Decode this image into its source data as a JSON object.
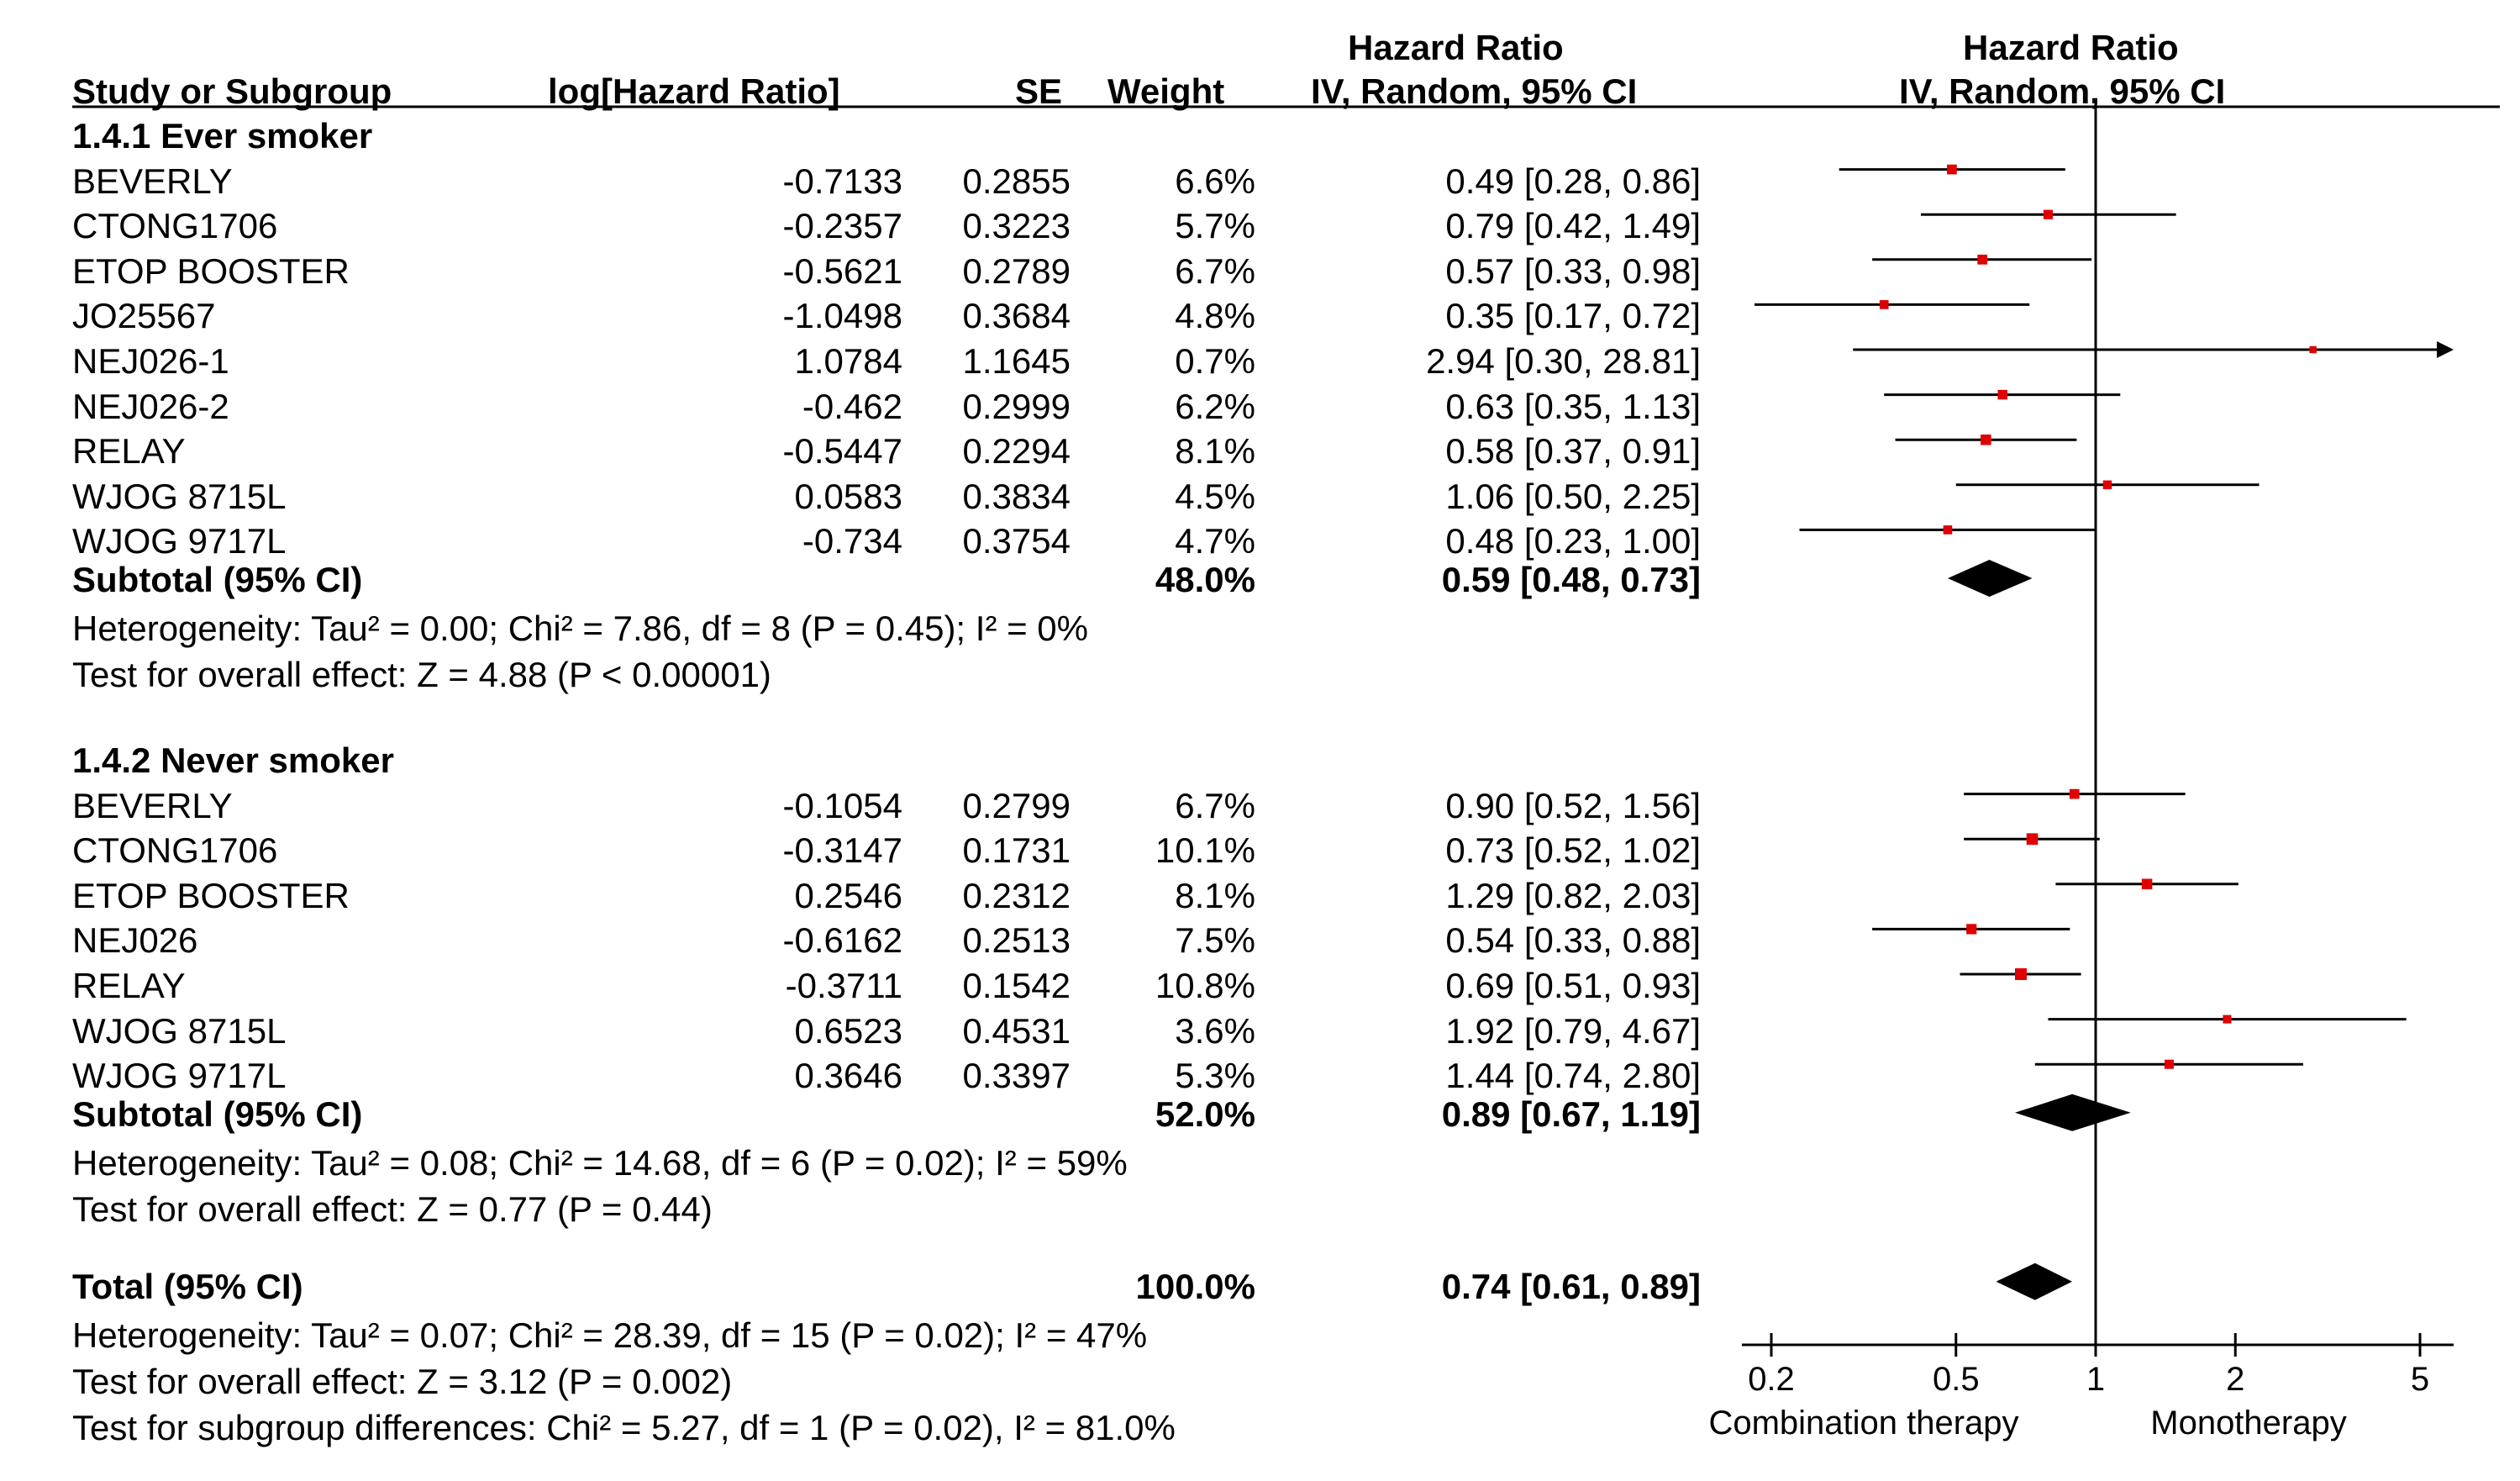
{
  "header": {
    "col_study": "Study or Subgroup",
    "col_loghr": "log[Hazard Ratio]",
    "col_se": "SE",
    "col_weight": "Weight",
    "col_hr_top": "Hazard Ratio",
    "col_hr_bottom": "IV, Random, 95% CI",
    "plot_top": "Hazard Ratio",
    "plot_bottom": "IV, Random, 95% CI"
  },
  "chart_data": {
    "type": "forest",
    "x_scale": "log",
    "xlim": [
      0.2,
      5
    ],
    "x_ticks": [
      "0.2",
      "0.5",
      "1",
      "2",
      "5"
    ],
    "reference_line": 1,
    "favours_left": "Combination therapy",
    "favours_right": "Monotherapy",
    "subgroups": [
      {
        "title": "1.4.1 Ever smoker",
        "studies": [
          {
            "name": "BEVERLY",
            "loghr": "-0.7133",
            "se": "0.2855",
            "weight": "6.6%",
            "ci": "0.49 [0.28, 0.86]",
            "hr": 0.49,
            "lo": 0.28,
            "hi": 0.86
          },
          {
            "name": "CTONG1706",
            "loghr": "-0.2357",
            "se": "0.3223",
            "weight": "5.7%",
            "ci": "0.79 [0.42, 1.49]",
            "hr": 0.79,
            "lo": 0.42,
            "hi": 1.49
          },
          {
            "name": "ETOP BOOSTER",
            "loghr": "-0.5621",
            "se": "0.2789",
            "weight": "6.7%",
            "ci": "0.57 [0.33, 0.98]",
            "hr": 0.57,
            "lo": 0.33,
            "hi": 0.98
          },
          {
            "name": "JO25567",
            "loghr": "-1.0498",
            "se": "0.3684",
            "weight": "4.8%",
            "ci": "0.35 [0.17, 0.72]",
            "hr": 0.35,
            "lo": 0.17,
            "hi": 0.72
          },
          {
            "name": "NEJ026-1",
            "loghr": "1.0784",
            "se": "1.1645",
            "weight": "0.7%",
            "ci": "2.94 [0.30, 28.81]",
            "hr": 2.94,
            "lo": 0.3,
            "hi": 28.81
          },
          {
            "name": "NEJ026-2",
            "loghr": "-0.462",
            "se": "0.2999",
            "weight": "6.2%",
            "ci": "0.63 [0.35, 1.13]",
            "hr": 0.63,
            "lo": 0.35,
            "hi": 1.13
          },
          {
            "name": "RELAY",
            "loghr": "-0.5447",
            "se": "0.2294",
            "weight": "8.1%",
            "ci": "0.58 [0.37, 0.91]",
            "hr": 0.58,
            "lo": 0.37,
            "hi": 0.91
          },
          {
            "name": "WJOG 8715L",
            "loghr": "0.0583",
            "se": "0.3834",
            "weight": "4.5%",
            "ci": "1.06 [0.50, 2.25]",
            "hr": 1.06,
            "lo": 0.5,
            "hi": 2.25
          },
          {
            "name": "WJOG 9717L",
            "loghr": "-0.734",
            "se": "0.3754",
            "weight": "4.7%",
            "ci": "0.48 [0.23, 1.00]",
            "hr": 0.48,
            "lo": 0.23,
            "hi": 1.0
          }
        ],
        "subtotal": {
          "label": "Subtotal (95% CI)",
          "weight": "48.0%",
          "ci": "0.59 [0.48, 0.73]",
          "hr": 0.59,
          "lo": 0.48,
          "hi": 0.73
        },
        "heterogeneity": "Heterogeneity: Tau² = 0.00; Chi² = 7.86, df = 8 (P = 0.45); I² = 0%",
        "overall_effect": "Test for overall effect: Z = 4.88 (P < 0.00001)"
      },
      {
        "title": "1.4.2 Never smoker",
        "studies": [
          {
            "name": "BEVERLY",
            "loghr": "-0.1054",
            "se": "0.2799",
            "weight": "6.7%",
            "ci": "0.90 [0.52, 1.56]",
            "hr": 0.9,
            "lo": 0.52,
            "hi": 1.56
          },
          {
            "name": "CTONG1706",
            "loghr": "-0.3147",
            "se": "0.1731",
            "weight": "10.1%",
            "ci": "0.73 [0.52, 1.02]",
            "hr": 0.73,
            "lo": 0.52,
            "hi": 1.02
          },
          {
            "name": "ETOP BOOSTER",
            "loghr": "0.2546",
            "se": "0.2312",
            "weight": "8.1%",
            "ci": "1.29 [0.82, 2.03]",
            "hr": 1.29,
            "lo": 0.82,
            "hi": 2.03
          },
          {
            "name": "NEJ026",
            "loghr": "-0.6162",
            "se": "0.2513",
            "weight": "7.5%",
            "ci": "0.54 [0.33, 0.88]",
            "hr": 0.54,
            "lo": 0.33,
            "hi": 0.88
          },
          {
            "name": "RELAY",
            "loghr": "-0.3711",
            "se": "0.1542",
            "weight": "10.8%",
            "ci": "0.69 [0.51, 0.93]",
            "hr": 0.69,
            "lo": 0.51,
            "hi": 0.93
          },
          {
            "name": "WJOG 8715L",
            "loghr": "0.6523",
            "se": "0.4531",
            "weight": "3.6%",
            "ci": "1.92 [0.79, 4.67]",
            "hr": 1.92,
            "lo": 0.79,
            "hi": 4.67
          },
          {
            "name": "WJOG 9717L",
            "loghr": "0.3646",
            "se": "0.3397",
            "weight": "5.3%",
            "ci": "1.44 [0.74, 2.80]",
            "hr": 1.44,
            "lo": 0.74,
            "hi": 2.8
          }
        ],
        "subtotal": {
          "label": "Subtotal (95% CI)",
          "weight": "52.0%",
          "ci": "0.89 [0.67, 1.19]",
          "hr": 0.89,
          "lo": 0.67,
          "hi": 1.19
        },
        "heterogeneity": "Heterogeneity: Tau² = 0.08; Chi² = 14.68, df = 6 (P = 0.02); I² = 59%",
        "overall_effect": "Test for overall effect: Z = 0.77 (P = 0.44)"
      }
    ],
    "total": {
      "label": "Total (95% CI)",
      "weight": "100.0%",
      "ci": "0.74 [0.61, 0.89]",
      "hr": 0.74,
      "lo": 0.61,
      "hi": 0.89
    },
    "total_heterogeneity": "Heterogeneity: Tau² = 0.07; Chi² = 28.39, df = 15 (P = 0.02); I² = 47%",
    "total_overall_effect": "Test for overall effect: Z = 3.12 (P = 0.002)",
    "subgroup_differences": "Test for subgroup differences: Chi² = 5.27, df = 1 (P = 0.02), I² = 81.0%",
    "colors": {
      "point": "#e00000",
      "line": "#000000",
      "diamond": "#000000"
    }
  }
}
